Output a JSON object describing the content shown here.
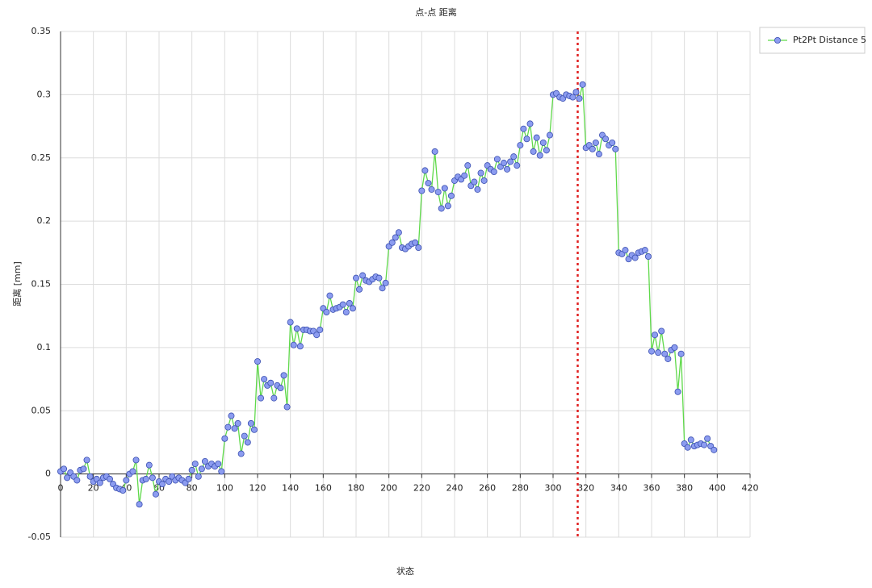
{
  "chart_data": {
    "type": "line",
    "title": "点-点 距离",
    "x_label": "状态",
    "y_label": "距离 [mm]",
    "x": [
      0,
      2,
      4,
      6,
      8,
      10,
      12,
      14,
      16,
      18,
      20,
      22,
      24,
      26,
      28,
      30,
      32,
      34,
      36,
      38,
      40,
      42,
      44,
      46,
      48,
      50,
      52,
      54,
      56,
      58,
      60,
      62,
      64,
      66,
      68,
      70,
      72,
      74,
      76,
      78,
      80,
      82,
      84,
      86,
      88,
      90,
      92,
      94,
      96,
      98,
      100,
      102,
      104,
      106,
      108,
      110,
      112,
      114,
      116,
      118,
      120,
      122,
      124,
      126,
      128,
      130,
      132,
      134,
      136,
      138,
      140,
      142,
      144,
      146,
      148,
      150,
      152,
      154,
      156,
      158,
      160,
      162,
      164,
      166,
      168,
      170,
      172,
      174,
      176,
      178,
      180,
      182,
      184,
      186,
      188,
      190,
      192,
      194,
      196,
      198,
      200,
      202,
      204,
      206,
      208,
      210,
      212,
      214,
      216,
      218,
      220,
      222,
      224,
      226,
      228,
      230,
      232,
      234,
      236,
      238,
      240,
      242,
      244,
      246,
      248,
      250,
      252,
      254,
      256,
      258,
      260,
      262,
      264,
      266,
      268,
      270,
      272,
      274,
      276,
      278,
      280,
      282,
      284,
      286,
      288,
      290,
      292,
      294,
      296,
      298,
      300,
      302,
      304,
      306,
      308,
      310,
      312,
      314,
      316,
      318,
      320,
      322,
      324,
      326,
      328,
      330,
      332,
      334,
      336,
      338,
      340,
      342,
      344,
      346,
      348,
      350,
      352,
      354,
      356,
      358,
      360,
      362,
      364,
      366,
      368,
      370,
      372,
      374,
      376,
      378,
      380,
      382,
      384,
      386,
      388,
      390,
      392,
      394,
      396,
      398
    ],
    "series": [
      {
        "name": "Pt2Pt Distance 5",
        "color": "#5fd94a",
        "marker_color": "#8c9cf0",
        "values": [
          0.002,
          0.004,
          -0.003,
          0.001,
          -0.002,
          -0.005,
          0.003,
          0.004,
          0.011,
          -0.002,
          -0.006,
          -0.004,
          -0.007,
          -0.003,
          -0.002,
          -0.004,
          -0.008,
          -0.011,
          -0.012,
          -0.013,
          -0.005,
          0.0,
          0.002,
          0.011,
          -0.024,
          -0.005,
          -0.004,
          0.007,
          -0.003,
          -0.016,
          -0.006,
          -0.008,
          -0.004,
          -0.006,
          -0.002,
          -0.005,
          -0.003,
          -0.005,
          -0.007,
          -0.004,
          0.003,
          0.008,
          -0.002,
          0.004,
          0.01,
          0.006,
          0.008,
          0.006,
          0.008,
          0.002,
          0.028,
          0.037,
          0.046,
          0.036,
          0.04,
          0.016,
          0.03,
          0.025,
          0.04,
          0.035,
          0.089,
          0.06,
          0.075,
          0.07,
          0.072,
          0.06,
          0.07,
          0.068,
          0.078,
          0.053,
          0.12,
          0.102,
          0.115,
          0.101,
          0.114,
          0.114,
          0.113,
          0.113,
          0.11,
          0.114,
          0.131,
          0.128,
          0.141,
          0.13,
          0.131,
          0.132,
          0.134,
          0.128,
          0.135,
          0.131,
          0.155,
          0.146,
          0.157,
          0.153,
          0.152,
          0.154,
          0.156,
          0.155,
          0.147,
          0.151,
          0.18,
          0.183,
          0.187,
          0.191,
          0.179,
          0.178,
          0.18,
          0.182,
          0.183,
          0.179,
          0.224,
          0.24,
          0.23,
          0.225,
          0.255,
          0.223,
          0.21,
          0.226,
          0.212,
          0.22,
          0.232,
          0.235,
          0.233,
          0.236,
          0.244,
          0.228,
          0.231,
          0.225,
          0.238,
          0.232,
          0.244,
          0.241,
          0.239,
          0.249,
          0.243,
          0.246,
          0.241,
          0.247,
          0.251,
          0.244,
          0.26,
          0.273,
          0.265,
          0.277,
          0.255,
          0.266,
          0.252,
          0.262,
          0.256,
          0.268,
          0.3,
          0.301,
          0.298,
          0.297,
          0.3,
          0.299,
          0.298,
          0.302,
          0.297,
          0.308,
          0.258,
          0.26,
          0.257,
          0.262,
          0.253,
          0.268,
          0.265,
          0.26,
          0.262,
          0.257,
          0.175,
          0.174,
          0.177,
          0.17,
          0.173,
          0.171,
          0.175,
          0.176,
          0.177,
          0.172,
          0.097,
          0.11,
          0.096,
          0.113,
          0.095,
          0.091,
          0.098,
          0.1,
          0.065,
          0.095,
          0.024,
          0.021,
          0.027,
          0.022,
          0.023,
          0.024,
          0.023,
          0.028,
          0.022,
          0.019
        ]
      }
    ],
    "marker_x": 315,
    "marker_color": "#e02020",
    "xlim": [
      0,
      420
    ],
    "xticks": [
      0,
      20,
      40,
      60,
      80,
      100,
      120,
      140,
      160,
      180,
      200,
      220,
      240,
      260,
      280,
      300,
      320,
      340,
      360,
      380,
      400,
      420
    ],
    "ylim": [
      -0.05,
      0.35
    ],
    "yticks": [
      -0.05,
      0,
      0.05,
      0.1,
      0.15,
      0.2,
      0.25,
      0.3,
      0.35
    ],
    "grid": true,
    "legend": "top-right"
  }
}
